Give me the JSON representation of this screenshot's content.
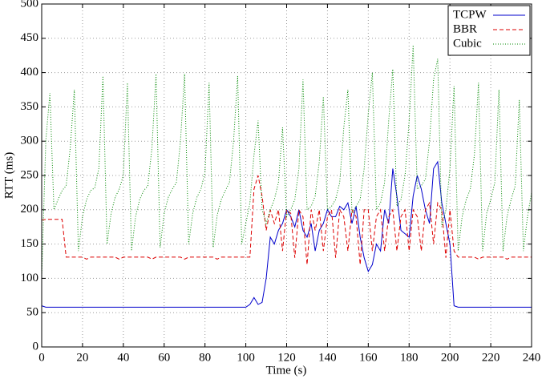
{
  "chart_data": {
    "type": "line",
    "xlabel": "Time (s)",
    "ylabel": "RTT (ms)",
    "x": [
      0,
      2,
      4,
      6,
      8,
      10,
      12,
      14,
      16,
      18,
      20,
      22,
      24,
      26,
      28,
      30,
      32,
      34,
      36,
      38,
      40,
      42,
      44,
      46,
      48,
      50,
      52,
      54,
      56,
      58,
      60,
      62,
      64,
      66,
      68,
      70,
      72,
      74,
      76,
      78,
      80,
      82,
      84,
      86,
      88,
      90,
      92,
      94,
      96,
      98,
      100,
      102,
      104,
      106,
      108,
      110,
      112,
      114,
      116,
      118,
      120,
      122,
      124,
      126,
      128,
      130,
      132,
      134,
      136,
      138,
      140,
      142,
      144,
      146,
      148,
      150,
      152,
      154,
      156,
      158,
      160,
      162,
      164,
      166,
      168,
      170,
      172,
      174,
      176,
      178,
      180,
      182,
      184,
      186,
      188,
      190,
      192,
      194,
      196,
      198,
      200,
      202,
      204,
      206,
      208,
      210,
      212,
      214,
      216,
      218,
      220,
      222,
      224,
      226,
      228,
      230,
      232,
      234,
      236,
      238,
      240
    ],
    "series": [
      {
        "name": "TCPW",
        "color": "#0000cc",
        "linestyle": "solid",
        "values": [
          60,
          58,
          58,
          58,
          58,
          58,
          58,
          58,
          58,
          58,
          58,
          58,
          58,
          58,
          58,
          58,
          58,
          58,
          58,
          58,
          58,
          58,
          58,
          58,
          58,
          58,
          58,
          58,
          58,
          58,
          58,
          58,
          58,
          58,
          58,
          58,
          58,
          58,
          58,
          58,
          58,
          58,
          58,
          58,
          58,
          58,
          58,
          58,
          58,
          58,
          58,
          62,
          72,
          62,
          65,
          100,
          160,
          150,
          170,
          180,
          200,
          190,
          175,
          200,
          170,
          160,
          180,
          140,
          170,
          180,
          200,
          190,
          190,
          205,
          200,
          210,
          180,
          205,
          160,
          130,
          110,
          120,
          150,
          140,
          200,
          180,
          260,
          220,
          170,
          165,
          160,
          220,
          250,
          230,
          200,
          180,
          260,
          270,
          210,
          180,
          150,
          60,
          58,
          58,
          58,
          58,
          58,
          58,
          58,
          58,
          58,
          58,
          58,
          58,
          58,
          58,
          58,
          58,
          58,
          58,
          58
        ]
      },
      {
        "name": "BBR",
        "color": "#dd0000",
        "linestyle": "dashed",
        "values": [
          185,
          186,
          186,
          186,
          186,
          186,
          131,
          131,
          131,
          131,
          131,
          128,
          131,
          131,
          131,
          131,
          131,
          131,
          131,
          128,
          131,
          131,
          131,
          131,
          131,
          131,
          131,
          128,
          131,
          131,
          131,
          131,
          131,
          131,
          131,
          128,
          131,
          131,
          131,
          131,
          131,
          131,
          131,
          128,
          131,
          131,
          131,
          131,
          131,
          131,
          131,
          131,
          230,
          250,
          220,
          170,
          200,
          180,
          200,
          140,
          200,
          195,
          130,
          200,
          190,
          120,
          200,
          170,
          200,
          140,
          190,
          200,
          130,
          200,
          190,
          140,
          200,
          190,
          120,
          200,
          200,
          140,
          190,
          200,
          140,
          190,
          200,
          140,
          190,
          200,
          140,
          200,
          190,
          140,
          200,
          210,
          150,
          210,
          200,
          130,
          200,
          140,
          131,
          131,
          131,
          131,
          131,
          128,
          131,
          131,
          131,
          131,
          131,
          131,
          128,
          131,
          131,
          131,
          131,
          131,
          131
        ]
      },
      {
        "name": "Cubic",
        "color": "#008800",
        "linestyle": "dotted",
        "values": [
          100,
          300,
          370,
          200,
          215,
          228,
          235,
          290,
          375,
          140,
          190,
          215,
          228,
          232,
          260,
          395,
          150,
          195,
          218,
          230,
          250,
          385,
          140,
          190,
          215,
          228,
          235,
          290,
          398,
          145,
          195,
          218,
          230,
          240,
          300,
          398,
          150,
          195,
          218,
          230,
          255,
          385,
          145,
          192,
          215,
          228,
          240,
          300,
          395,
          150,
          180,
          210,
          280,
          330,
          200,
          180,
          200,
          215,
          240,
          320,
          190,
          200,
          215,
          260,
          390,
          200,
          205,
          220,
          270,
          365,
          200,
          205,
          215,
          240,
          320,
          375,
          195,
          205,
          215,
          260,
          340,
          400,
          200,
          210,
          240,
          330,
          405,
          205,
          215,
          250,
          330,
          440,
          230,
          235,
          245,
          300,
          390,
          420,
          175,
          200,
          260,
          380,
          140,
          190,
          215,
          230,
          280,
          385,
          140,
          195,
          215,
          240,
          375,
          140,
          190,
          215,
          235,
          360,
          140,
          190,
          225
        ]
      }
    ],
    "xlim": [
      0,
      240
    ],
    "xticks": [
      0,
      20,
      40,
      60,
      80,
      100,
      120,
      140,
      160,
      180,
      200,
      220,
      240
    ],
    "ylim": [
      0,
      500
    ],
    "yticks": [
      0,
      50,
      100,
      150,
      200,
      250,
      300,
      350,
      400,
      450,
      500
    ],
    "grid": true,
    "legend": "upper right"
  }
}
